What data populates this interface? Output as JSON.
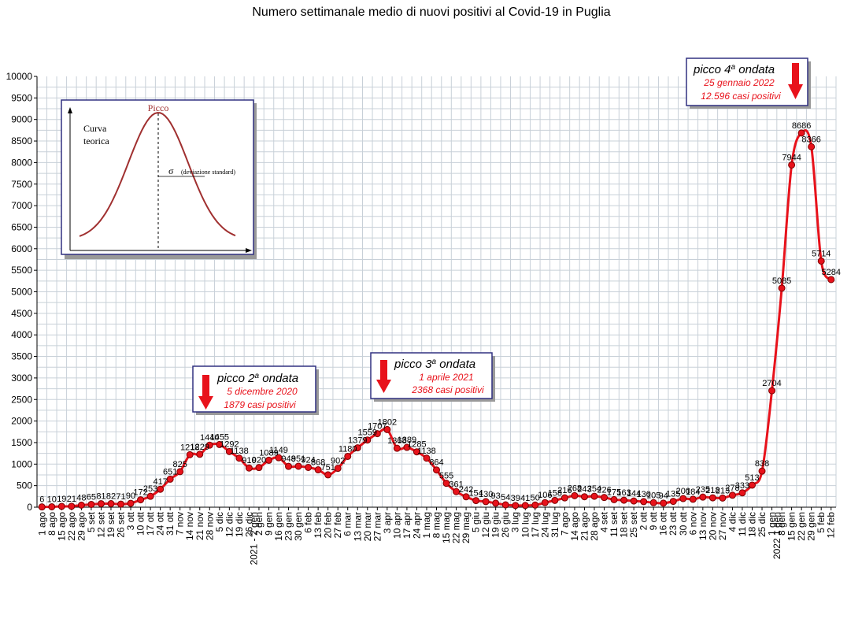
{
  "chart_data": {
    "type": "line",
    "title": "Numero settimanale medio di nuovi positivi al Covid-19 in Puglia",
    "xlabel": "",
    "ylabel": "",
    "ylim": [
      0,
      10000
    ],
    "yticks": [
      0,
      500,
      1000,
      1500,
      2000,
      2500,
      3000,
      3500,
      4000,
      4500,
      5000,
      5500,
      6000,
      6500,
      7000,
      7500,
      8000,
      8500,
      9000,
      9500,
      10000
    ],
    "grid": true,
    "legend": "none",
    "line_color": "#e8121b",
    "year_markers": [
      {
        "after_index": 21,
        "label": "2021 - 2 gen"
      },
      {
        "after_index": 74,
        "label": "2022 1 gen"
      }
    ],
    "categories": [
      "1 ago",
      "8 ago",
      "15 ago",
      "22 ago",
      "29 ago",
      "5 set",
      "12 set",
      "19 set",
      "26 set",
      "3 ott",
      "10 ott",
      "17 ott",
      "24 ott",
      "31 ott",
      "7 nov",
      "14 nov",
      "21 nov",
      "28 nov",
      "5 dic",
      "12 dic",
      "19 dic",
      "26 dic",
      "2 gen",
      "9 gen",
      "16 gen",
      "23 gen",
      "30 gen",
      "6 feb",
      "13 feb",
      "20 feb",
      "27 feb",
      "6 mar",
      "13 mar",
      "20 mar",
      "27 mar",
      "3 apr",
      "10 apr",
      "17 apr",
      "24 apr",
      "1 mag",
      "8 mag",
      "15 mag",
      "22 mag",
      "29 mag",
      "5 giu",
      "12 giu",
      "19 giu",
      "26 giu",
      "3 lug",
      "10 lug",
      "17 lug",
      "24 lug",
      "31 lug",
      "7 ago",
      "14 ago",
      "21 ago",
      "28 ago",
      "4 set",
      "11 set",
      "18 set",
      "25 set",
      "2 ott",
      "9 ott",
      "16 ott",
      "23 ott",
      "30 ott",
      "6 nov",
      "13 nov",
      "20 nov",
      "27 nov",
      "4 dic",
      "11 dic",
      "18 dic",
      "25 dic",
      "1 gen",
      "8 gen",
      "15 gen",
      "22 gen",
      "29 gen",
      "5 feb",
      "12 feb"
    ],
    "series": [
      {
        "values": [
          6,
          10,
          19,
          21,
          48,
          65,
          81,
          82,
          71,
          90,
          172,
          253,
          417,
          651,
          825,
          1218,
          1229,
          1440,
          1455,
          1292,
          1138,
          910,
          920,
          1089,
          1149,
          948,
          951,
          924,
          868,
          751,
          902,
          1180,
          1379,
          1559,
          1707,
          1802,
          1368,
          1389,
          1285,
          1138,
          864,
          555,
          361,
          242,
          154,
          130,
          93,
          54,
          39,
          41,
          50,
          106,
          158,
          216,
          268,
          243,
          254,
          226,
          175,
          163,
          144,
          130,
          105,
          94,
          135,
          200,
          184,
          235,
          218,
          213,
          278,
          333,
          513,
          838,
          2704,
          5085,
          7944,
          8686,
          8366,
          5714,
          5284
        ],
        "labels": [
          "6",
          "10",
          "19",
          "21",
          "48",
          "65",
          "81",
          "82",
          "71",
          "90",
          "172",
          "253",
          "417",
          "651",
          "825",
          "1218",
          "1229",
          "1440",
          "1455",
          "1292",
          "1138",
          "910",
          "920",
          "1089",
          "1149",
          "948",
          "951",
          "924",
          "868",
          "751",
          "902",
          "1180",
          "1379",
          "1559",
          "1707",
          "1802",
          "1368",
          "1389",
          "1285",
          "1138",
          "864",
          "555",
          "361",
          "242",
          "154",
          "130",
          "93",
          "54",
          "39",
          "41",
          "50",
          "106",
          "158",
          "216",
          "268",
          "243",
          "254",
          "226",
          "175",
          "163",
          "144",
          "130",
          "105",
          "94",
          "135",
          "200",
          "184",
          "235",
          "218",
          "213",
          "278",
          "333",
          "513",
          "838",
          "2704",
          "5085",
          "7944",
          "8686",
          "8366",
          "5714",
          "5284"
        ]
      }
    ]
  },
  "annotations": [
    {
      "key": "p2",
      "title_main": "picco 2",
      "title_sup": "a",
      "title_rest": " ondata",
      "date": "5 dicembre 2020",
      "value": "1879 casi positivi"
    },
    {
      "key": "p3",
      "title_main": "picco 3",
      "title_sup": "a",
      "title_rest": " ondata",
      "date": "1 aprile 2021",
      "value": "2368 casi positivi"
    },
    {
      "key": "p4",
      "title_main": "picco 4",
      "title_sup": "a",
      "title_rest": " ondata",
      "date": "25 gennaio 2022",
      "value": "12.596 casi positivi"
    }
  ],
  "inset": {
    "peak_label": "Picco",
    "curve_label_1": "Curva",
    "curve_label_2": "teorica",
    "sigma": "σ",
    "sigma_label": "(deviazione standard)"
  }
}
